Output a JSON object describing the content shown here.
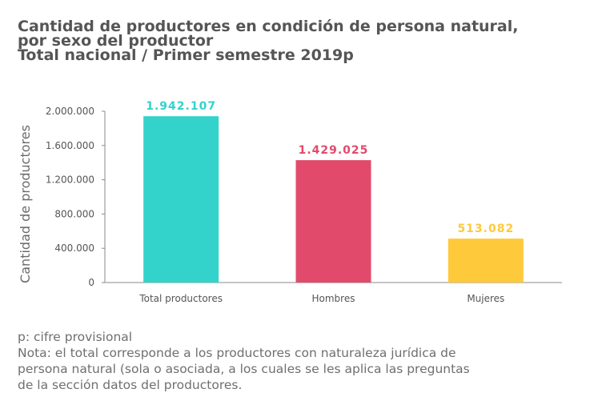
{
  "title": {
    "line1": "Cantidad de productores en condición de persona natural,",
    "line2": "por sexo del productor",
    "line3": "Total nacional / Primer semestre 2019p"
  },
  "chart_data": {
    "type": "bar",
    "categories": [
      "Total productores",
      "Hombres",
      "Mujeres"
    ],
    "values": [
      1942107,
      1429025,
      513082
    ],
    "data_labels": [
      "1.942.107",
      "1.429.025",
      "513.082"
    ],
    "colors": [
      "#33d3cb",
      "#e24a6b",
      "#ffc93c"
    ],
    "ylabel": "Cantidad de productores",
    "xlabel": "",
    "ylim": [
      0,
      2000000
    ],
    "yticks": [
      0,
      400000,
      800000,
      1200000,
      1600000,
      2000000
    ],
    "ytick_labels": [
      "0",
      "400.000",
      "800.000",
      "1.200.000",
      "1.600.000",
      "2.000.000"
    ],
    "grid": false,
    "legend": "none"
  },
  "notes": {
    "line1": "p: cifre provisional",
    "line2": "Nota: el total corresponde a los productores con naturaleza jurídica de",
    "line3": "persona natural (sola o asociada, a los cuales se les aplica las preguntas",
    "line4": "de la sección datos del productores."
  }
}
